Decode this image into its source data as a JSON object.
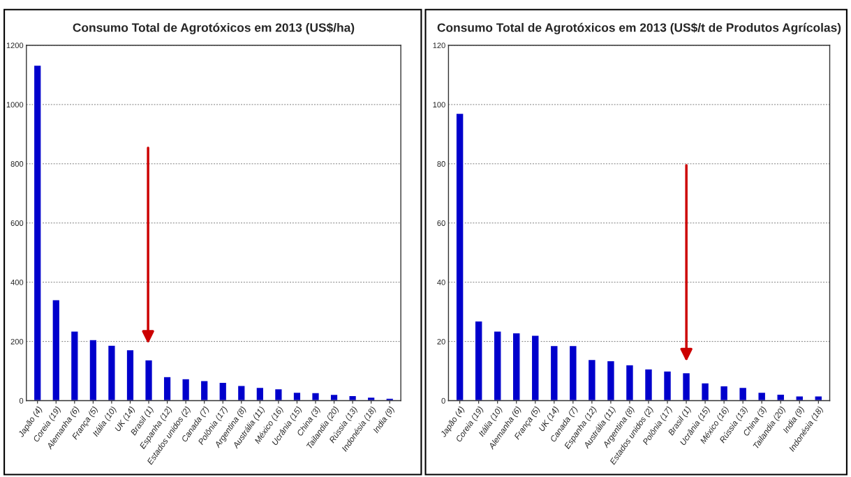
{
  "chart_data": [
    {
      "type": "bar",
      "title": "Consumo Total de Agrotóxicos em 2013 (US$/ha)",
      "categories": [
        "Japão (4)",
        "Coreia (19)",
        "Alemanha (6)",
        "França (5)",
        "Itália (10)",
        "UK (14)",
        "Brasil (1)",
        "Espanha (12)",
        "Estados unidos (2)",
        "Canada (7)",
        "Polônia (17)",
        "Argentina (8)",
        "Austrália (11)",
        "México (16)",
        "Ucrânia (15)",
        "China (3)",
        "Tailandia (20)",
        "Rússia (13)",
        "Indonésia (18)",
        "India (9)"
      ],
      "values": [
        1133,
        341,
        235,
        206,
        187,
        172,
        138,
        81,
        74,
        68,
        62,
        51,
        45,
        40,
        28,
        27,
        21,
        17,
        12,
        8
      ],
      "color": "#0000cc",
      "ylim": [
        0,
        1200
      ],
      "yticks": [
        0,
        200,
        400,
        600,
        800,
        1000,
        1200
      ],
      "grid": "y",
      "legend": false
    },
    {
      "type": "bar",
      "title": "Consumo Total de Agrotóxicos em 2013 (US$/t de Produtos Agrícolas)",
      "categories": [
        "Japão (4)",
        "Coreia (19)",
        "Itália (10)",
        "Alemanha (6)",
        "França (5)",
        "UK (14)",
        "Canada (7)",
        "Espanha (12)",
        "Austrália (11)",
        "Argentina (8)",
        "Estados unidos (2)",
        "Polônia (17)",
        "Brasil (1)",
        "Ucrânia (15)",
        "México (16)",
        "Rússia (13)",
        "China (3)",
        "Tailandia (20)",
        "India (9)",
        "Indonésia (18)"
      ],
      "values": [
        97.0,
        26.9,
        23.5,
        22.9,
        22.1,
        18.6,
        18.6,
        13.9,
        13.5,
        12.1,
        10.7,
        10.0,
        9.4,
        6.0,
        5.0,
        4.5,
        2.8,
        2.2,
        1.6,
        1.6
      ],
      "color": "#0000cc",
      "ylim": [
        0,
        120
      ],
      "yticks": [
        0,
        20,
        40,
        60,
        80,
        100,
        120
      ],
      "grid": "y",
      "legend": false
    }
  ]
}
